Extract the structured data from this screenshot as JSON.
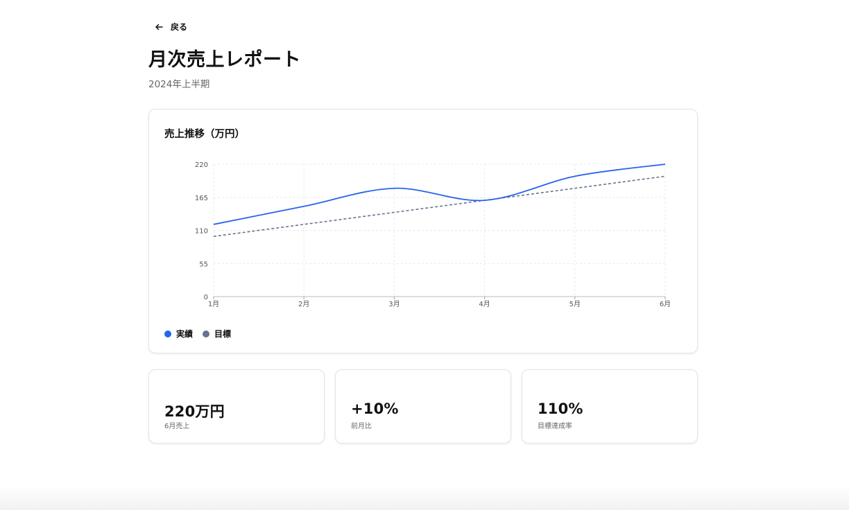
{
  "nav": {
    "back_label": "戻る"
  },
  "page": {
    "title": "月次売上レポート",
    "subtitle": "2024年上半期"
  },
  "chart_card": {
    "title": "売上推移（万円）"
  },
  "chart_data": {
    "type": "line",
    "title": "売上推移（万円）",
    "categories": [
      "1月",
      "2月",
      "3月",
      "4月",
      "5月",
      "6月"
    ],
    "y_ticks": [
      0,
      55,
      110,
      165,
      220
    ],
    "ylim": [
      0,
      220
    ],
    "grid": true,
    "legend_position": "bottom-left",
    "series": [
      {
        "name": "実績",
        "values": [
          120,
          150,
          180,
          160,
          200,
          220
        ],
        "color": "#2563eb",
        "style": "solid"
      },
      {
        "name": "目標",
        "values": [
          100,
          120,
          140,
          160,
          180,
          200
        ],
        "color": "#64748b",
        "style": "dashed"
      }
    ]
  },
  "stats": [
    {
      "value": "220万円",
      "label": "6月売上"
    },
    {
      "value": "+10%",
      "label": "前月比"
    },
    {
      "value": "110%",
      "label": "目標達成率"
    }
  ],
  "icons": {
    "back": "arrow-left-icon"
  }
}
